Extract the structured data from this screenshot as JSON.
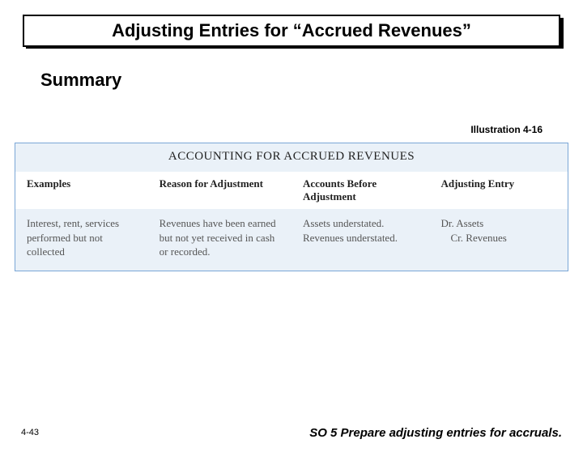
{
  "title": "Adjusting Entries for “Accrued Revenues”",
  "summary_label": "Summary",
  "illustration_label": "Illustration 4-16",
  "figure": {
    "heading": "ACCOUNTING FOR ACCRUED REVENUES",
    "columns": [
      "Examples",
      "Reason for Adjustment",
      "Accounts Before Adjustment",
      "Adjusting Entry"
    ],
    "row": {
      "examples": "Interest, rent, services performed but not collected",
      "reason": "Revenues have been earned but not yet received in cash or recorded.",
      "accounts": "Assets understated. Revenues understated.",
      "entry_line1": "Dr. Assets",
      "entry_line2": "Cr. Revenues"
    },
    "colors": {
      "panel_bg": "#eaf1f8",
      "border": "#7aa6d6",
      "header_bg": "#ffffff",
      "body_text": "#555555"
    }
  },
  "page_number": "4-43",
  "footer": "SO 5  Prepare adjusting entries for accruals."
}
